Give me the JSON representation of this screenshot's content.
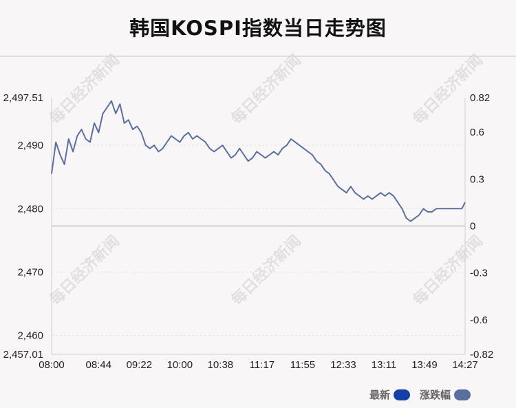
{
  "title": "韩国KOSPI指数当日走势图",
  "watermark": "每日经济新闻",
  "legend": [
    {
      "label": "最新",
      "color": "#1440a8"
    },
    {
      "label": "涨跌幅",
      "color": "#5b6f9e"
    }
  ],
  "chart_data": {
    "type": "line",
    "x_ticks": [
      "08:00",
      "08:44",
      "09:22",
      "10:00",
      "10:38",
      "11:17",
      "11:55",
      "12:33",
      "13:11",
      "13:49",
      "14:27"
    ],
    "y_left_ticks": [
      "2,497.51",
      "2,490",
      "2,480",
      "2,470",
      "2,460",
      "2,457.01"
    ],
    "y_right_ticks": [
      "0.82",
      "0.6",
      "0.3",
      "0",
      "-0.3",
      "-0.6",
      "-0.82"
    ],
    "ylim": [
      2457.01,
      2497.51
    ],
    "y_right_lim": [
      -0.82,
      0.82
    ],
    "baseline": 2477.26,
    "grid": true,
    "legend_position": "bottom-right",
    "series": [
      {
        "name": "最新",
        "color": "#5b6f9e",
        "x": [
          "08:00",
          "08:04",
          "08:08",
          "08:12",
          "08:16",
          "08:20",
          "08:24",
          "08:28",
          "08:32",
          "08:36",
          "08:40",
          "08:44",
          "08:48",
          "08:52",
          "08:56",
          "09:00",
          "09:04",
          "09:08",
          "09:12",
          "09:16",
          "09:20",
          "09:24",
          "09:28",
          "09:32",
          "09:36",
          "09:40",
          "09:44",
          "09:48",
          "09:52",
          "09:56",
          "10:00",
          "10:04",
          "10:08",
          "10:12",
          "10:16",
          "10:20",
          "10:24",
          "10:28",
          "10:32",
          "10:36",
          "10:40",
          "10:44",
          "10:48",
          "10:52",
          "10:56",
          "11:00",
          "11:04",
          "11:08",
          "11:12",
          "11:16",
          "11:20",
          "11:24",
          "11:28",
          "11:32",
          "11:36",
          "11:40",
          "11:44",
          "11:48",
          "11:52",
          "11:56",
          "12:00",
          "12:04",
          "12:08",
          "12:12",
          "12:16",
          "12:20",
          "12:24",
          "12:28",
          "12:32",
          "12:36",
          "12:40",
          "12:44",
          "12:48",
          "12:52",
          "12:56",
          "13:00",
          "13:04",
          "13:08",
          "13:12",
          "13:16",
          "13:20",
          "13:24",
          "13:28",
          "13:32",
          "13:36",
          "13:40",
          "13:44",
          "13:48",
          "13:52",
          "13:56",
          "14:00",
          "14:04",
          "14:08",
          "14:12",
          "14:16",
          "14:20",
          "14:24",
          "14:27"
        ],
        "values": [
          2485.5,
          2490.5,
          2488.5,
          2487.0,
          2491.0,
          2489.0,
          2491.5,
          2492.5,
          2491.0,
          2490.5,
          2493.5,
          2492.0,
          2495.0,
          2496.0,
          2497.0,
          2495.0,
          2496.5,
          2493.5,
          2494.0,
          2492.5,
          2493.0,
          2492.0,
          2490.0,
          2489.5,
          2490.0,
          2489.0,
          2489.5,
          2490.5,
          2491.5,
          2491.0,
          2490.5,
          2491.5,
          2492.0,
          2491.0,
          2491.5,
          2491.0,
          2490.5,
          2489.5,
          2489.0,
          2489.5,
          2490.0,
          2489.0,
          2488.0,
          2488.5,
          2489.5,
          2488.5,
          2487.5,
          2488.0,
          2489.0,
          2488.5,
          2488.0,
          2488.5,
          2489.0,
          2488.5,
          2489.5,
          2490.0,
          2491.0,
          2490.5,
          2490.0,
          2489.5,
          2489.0,
          2488.5,
          2487.5,
          2487.0,
          2486.0,
          2485.5,
          2484.5,
          2483.5,
          2483.0,
          2482.5,
          2483.5,
          2482.5,
          2482.0,
          2481.5,
          2482.0,
          2481.5,
          2482.0,
          2482.5,
          2482.0,
          2482.5,
          2482.0,
          2481.0,
          2480.0,
          2478.5,
          2478.0,
          2478.5,
          2479.0,
          2480.0,
          2479.5,
          2479.5,
          2480.0,
          2480.0,
          2480.0,
          2480.0,
          2480.0,
          2480.0,
          2480.0,
          2481.0
        ]
      }
    ]
  }
}
